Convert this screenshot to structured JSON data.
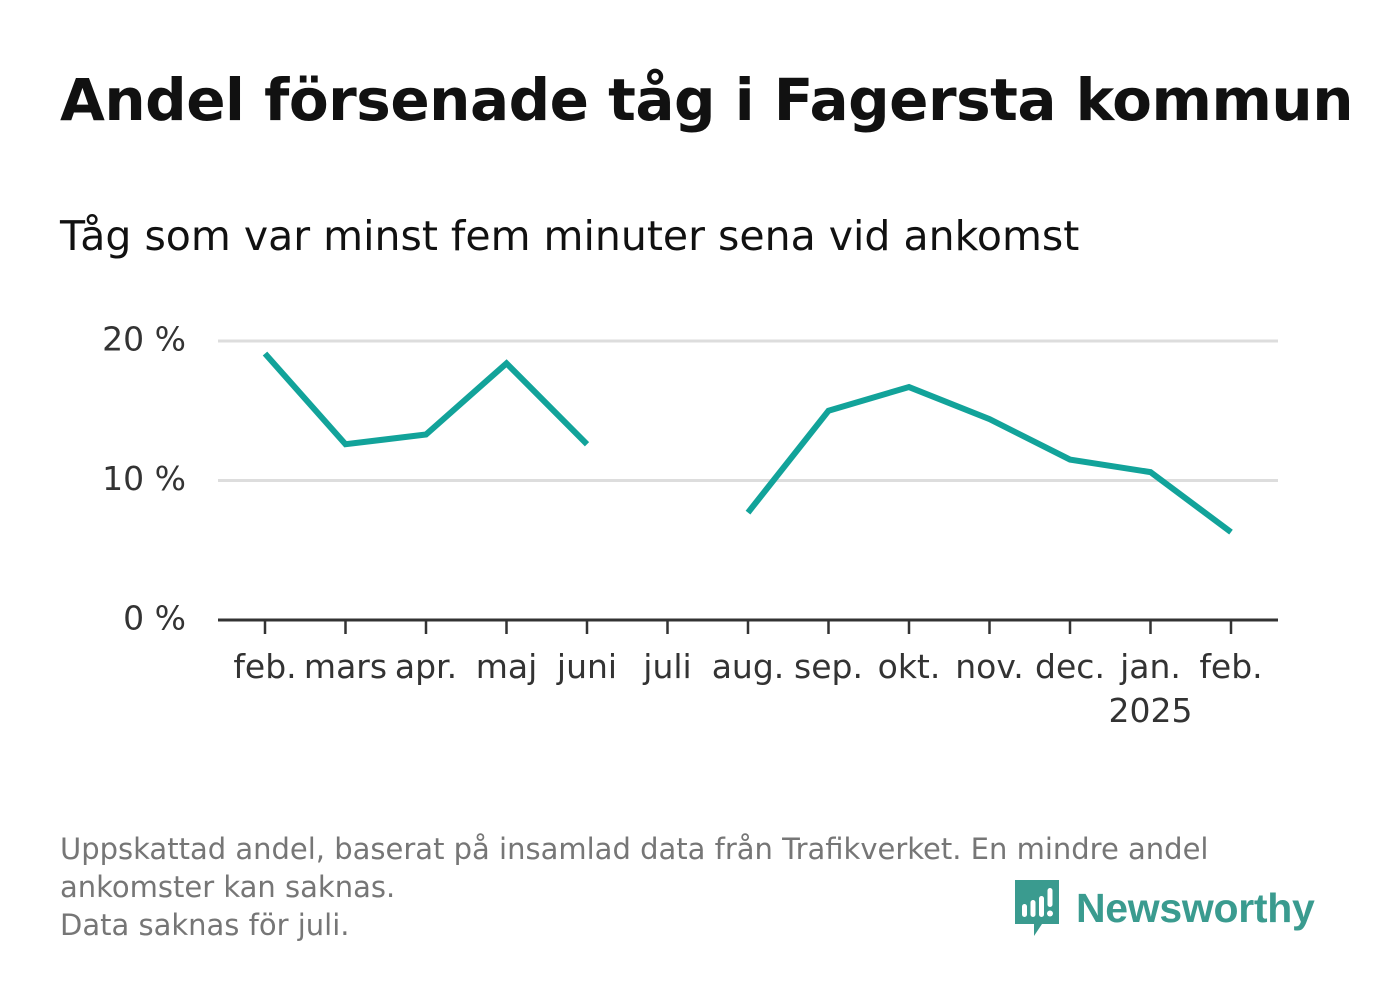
{
  "header": {
    "title": "Andel försenade tåg i Fagersta kommun",
    "subtitle": "Tåg som var minst fem minuter sena vid ankomst"
  },
  "chart_data": {
    "type": "line",
    "categories": [
      "feb.",
      "mars",
      "apr.",
      "maj",
      "juni",
      "juli",
      "aug.",
      "sep.",
      "okt.",
      "nov.",
      "dec.",
      "jan.",
      "feb."
    ],
    "category_sublabels": [
      "",
      "",
      "",
      "",
      "",
      "",
      "",
      "",
      "",
      "",
      "",
      "2025",
      ""
    ],
    "series": [
      {
        "values": [
          19.1,
          12.6,
          13.3,
          18.4,
          12.6,
          null,
          7.7,
          15.0,
          16.7,
          14.4,
          11.5,
          10.6,
          6.3
        ]
      }
    ],
    "ylim": [
      0,
      20
    ],
    "yticks": [
      0,
      10,
      20
    ],
    "ytick_labels": [
      "0 %",
      "10 %",
      "20 %"
    ],
    "grid": true,
    "colors": {
      "line": "#12a39a",
      "grid": "#dddddd",
      "axis": "#333333"
    }
  },
  "footer": {
    "notes": [
      "Uppskattad andel, baserat på insamlad data från Trafikverket. En mindre andel",
      "ankomster kan saknas.",
      "Data saknas för juli."
    ],
    "brand": {
      "name": "Newsworthy",
      "icon": "newsworthy-logo-icon",
      "color": "#3a9b8f"
    }
  }
}
